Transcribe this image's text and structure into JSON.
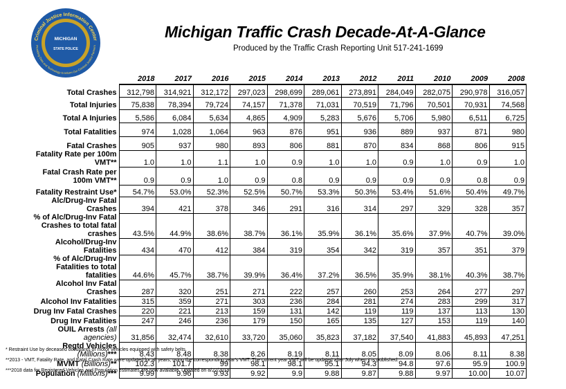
{
  "header": {
    "title": "Michigan Traffic Crash Decade-At-A-Glance",
    "subtitle": "Produced by the Traffic Crash Reporting Unit 517-241-1699",
    "logo_text_top": "Criminal Justice Information Center",
    "logo_text_bottom": "Providing Data and Technology to Inform Our Criminal Justice Partners",
    "logo_center_top": "MICHIGAN",
    "logo_center_bottom": "STATE POLICE",
    "logo_color": "#1f5aa6"
  },
  "table": {
    "years": [
      "2018",
      "2017",
      "2016",
      "2015",
      "2014",
      "2013",
      "2012",
      "2011",
      "2010",
      "2009",
      "2008"
    ],
    "rows": [
      {
        "label": "Total Crashes",
        "values": [
          "312,798",
          "314,921",
          "312,172",
          "297,023",
          "298,699",
          "289,061",
          "273,891",
          "284,049",
          "282,075",
          "290,978",
          "316,057"
        ]
      },
      {
        "label": "Total Injuries",
        "values": [
          "75,838",
          "78,394",
          "79,724",
          "74,157",
          "71,378",
          "71,031",
          "70,519",
          "71,796",
          "70,501",
          "70,931",
          "74,568"
        ]
      },
      {
        "label": "Total A Injuries",
        "values": [
          "5,586",
          "6,084",
          "5,634",
          "4,865",
          "4,909",
          "5,283",
          "5,676",
          "5,706",
          "5,980",
          "6,511",
          "6,725"
        ]
      },
      {
        "label": "Total Fatalities",
        "values": [
          "974",
          "1,028",
          "1,064",
          "963",
          "876",
          "951",
          "936",
          "889",
          "937",
          "871",
          "980"
        ]
      },
      {
        "label": "Fatal Crashes",
        "values": [
          "905",
          "937",
          "980",
          "893",
          "806",
          "881",
          "870",
          "834",
          "868",
          "806",
          "915"
        ]
      },
      {
        "label": "Fatality Rate per 100m VMT**",
        "values": [
          "1.0",
          "1.0",
          "1.1",
          "1.0",
          "0.9",
          "1.0",
          "1.0",
          "0.9",
          "1.0",
          "0.9",
          "1.0"
        ]
      },
      {
        "label": "Fatal Crash Rate per 100m VMT**",
        "values": [
          "0.9",
          "0.9",
          "1.0",
          "0.9",
          "0.8",
          "0.9",
          "0.9",
          "0.9",
          "0.9",
          "0.8",
          "0.9"
        ]
      },
      {
        "label": "Fatality Restraint Use*",
        "values": [
          "54.7%",
          "53.0%",
          "52.3%",
          "52.5%",
          "50.7%",
          "53.3%",
          "50.3%",
          "53.4%",
          "51.6%",
          "50.4%",
          "49.7%"
        ]
      },
      {
        "label": "Alc/Drug-Inv Fatal Crashes",
        "values": [
          "394",
          "421",
          "378",
          "346",
          "291",
          "316",
          "314",
          "297",
          "329",
          "328",
          "357"
        ]
      },
      {
        "label": "% of Alc/Drug-Inv Fatal Crashes to total fatal crashes",
        "values": [
          "43.5%",
          "44.9%",
          "38.6%",
          "38.7%",
          "36.1%",
          "35.9%",
          "36.1%",
          "35.6%",
          "37.9%",
          "40.7%",
          "39.0%"
        ]
      },
      {
        "label": "Alcohol/Drug-Inv Fatalities",
        "values": [
          "434",
          "470",
          "412",
          "384",
          "319",
          "354",
          "342",
          "319",
          "357",
          "351",
          "379"
        ]
      },
      {
        "label": "% of Alc/Drug-Inv Fatalities to total fatalities",
        "values": [
          "44.6%",
          "45.7%",
          "38.7%",
          "39.9%",
          "36.4%",
          "37.2%",
          "36.5%",
          "35.9%",
          "38.1%",
          "40.3%",
          "38.7%"
        ]
      },
      {
        "label": "Alcohol Inv Fatal Crashes",
        "values": [
          "287",
          "320",
          "251",
          "271",
          "222",
          "257",
          "260",
          "253",
          "264",
          "277",
          "297"
        ]
      },
      {
        "label": "Alcohol Inv Fatalities",
        "values": [
          "315",
          "359",
          "271",
          "303",
          "236",
          "284",
          "281",
          "274",
          "283",
          "299",
          "317"
        ]
      },
      {
        "label": "Drug Inv Fatal Crashes",
        "values": [
          "220",
          "221",
          "213",
          "159",
          "131",
          "142",
          "119",
          "119",
          "137",
          "113",
          "130"
        ]
      },
      {
        "label": "Drug Inv Fatalities",
        "values": [
          "247",
          "246",
          "236",
          "179",
          "150",
          "165",
          "135",
          "127",
          "153",
          "119",
          "140"
        ]
      },
      {
        "label": "OUIL Arrests",
        "label_note": "(all agencies)",
        "values": [
          "31,856",
          "32,474",
          "32,610",
          "33,720",
          "35,060",
          "35,823",
          "37,182",
          "37,540",
          "41,883",
          "45,893",
          "47,251"
        ]
      },
      {
        "label": "Regtd Vehicles",
        "label_note": "(Millions)",
        "label_suffix": "***",
        "values": [
          "8.43",
          "8.48",
          "8.38",
          "8.26",
          "8.19",
          "8.11",
          "8.05",
          "8.09",
          "8.06",
          "8.11",
          "8.38"
        ]
      },
      {
        "label": "MVMT",
        "label_note": "(Billions)",
        "label_suffix": "**",
        "values": [
          "102.3",
          "101.7",
          "99",
          "98.1",
          "98.1",
          "95.1",
          "94.3",
          "94.8",
          "97.6",
          "95.9",
          "100.9"
        ]
      },
      {
        "label": "Population",
        "label_note": "(Millions)",
        "label_suffix": "***",
        "values": [
          "9.99",
          "9.96",
          "9.93",
          "9.92",
          "9.9",
          "9.88",
          "9.87",
          "9.88",
          "9.97",
          "10.00",
          "10.07"
        ]
      }
    ]
  },
  "footnotes": [
    "* Restraint Use by deceased occupants of motor vehicles equipped with safety belts.",
    "**2013 - VMT, Fatality Rate, and Fatal Crash Rate were updated for all years, using the corresponding year's VMT.  The current year VMT will be updated after July when it is published.",
    "***2018 data for Registered Vehicles and Population estimates are now available.  Updated on 8/27/2019."
  ]
}
